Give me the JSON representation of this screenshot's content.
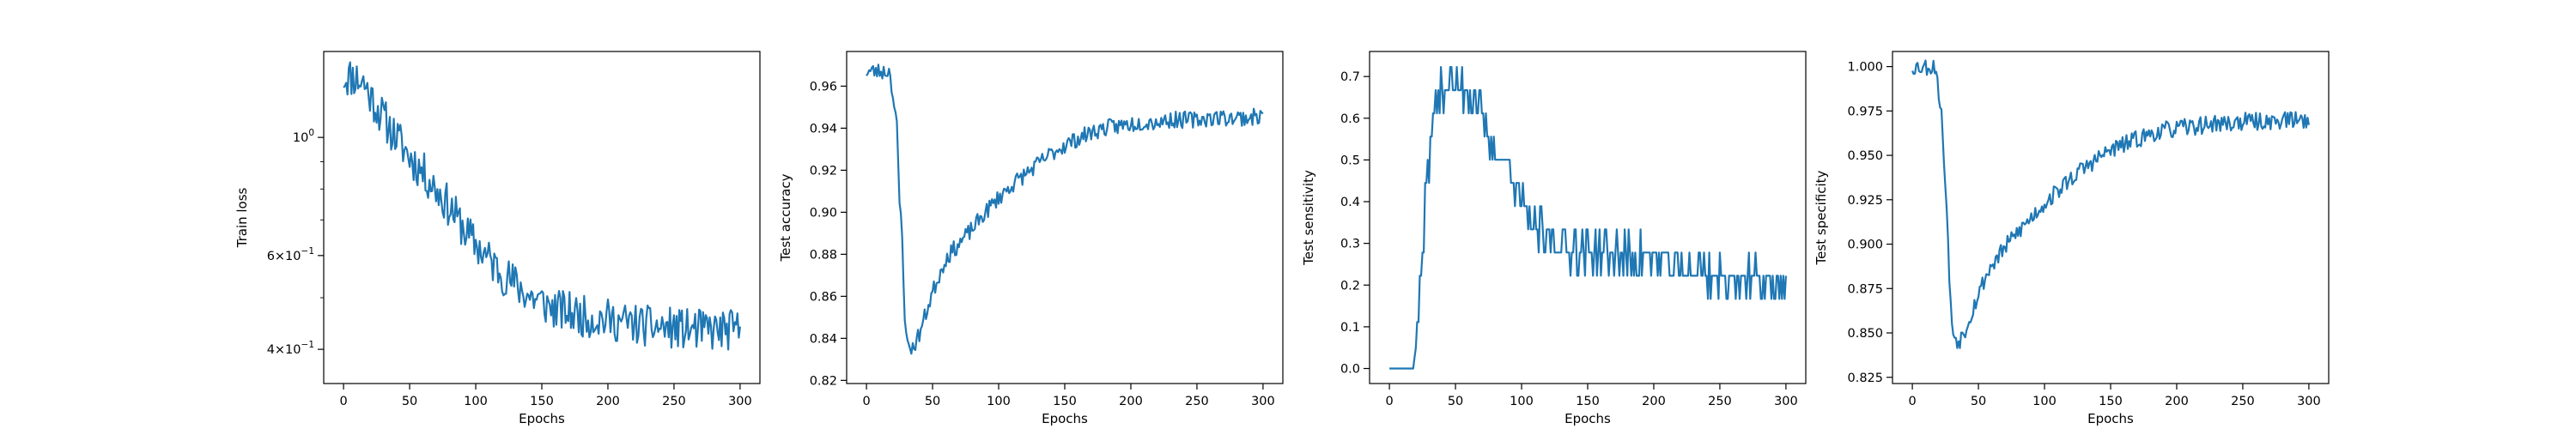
{
  "chart_data": [
    {
      "type": "line",
      "xlabel": "Epochs",
      "ylabel": "Train loss",
      "xlim": [
        -15,
        315
      ],
      "ylim": [
        0.345,
        1.45
      ],
      "yscale": "log",
      "xticks": [
        0,
        50,
        100,
        150,
        200,
        250,
        300
      ],
      "yticks": [
        {
          "value": 1.0,
          "label": "10^0"
        },
        {
          "value": 0.6,
          "label": "6×10^-1"
        },
        {
          "value": 0.4,
          "label": "4×10^-1"
        }
      ],
      "y_minor_ticks": [
        0.5,
        0.7,
        0.8,
        0.9
      ],
      "series": [
        {
          "color": "#1f77b4",
          "noise": 0.045,
          "seed": 11,
          "x": [
            0,
            8,
            15,
            20,
            25,
            30,
            35,
            40,
            45,
            50,
            55,
            60,
            65,
            70,
            75,
            80,
            85,
            90,
            95,
            100,
            105,
            110,
            120,
            130,
            140,
            150,
            160,
            170,
            180,
            190,
            200,
            210,
            220,
            230,
            240,
            250,
            260,
            270,
            280,
            290,
            300
          ],
          "y": [
            1.3,
            1.3,
            1.27,
            1.2,
            1.14,
            1.09,
            1.04,
            1.0,
            0.96,
            0.92,
            0.89,
            0.86,
            0.83,
            0.8,
            0.77,
            0.74,
            0.71,
            0.68,
            0.65,
            0.63,
            0.61,
            0.59,
            0.555,
            0.53,
            0.505,
            0.49,
            0.475,
            0.47,
            0.462,
            0.458,
            0.455,
            0.45,
            0.446,
            0.442,
            0.44,
            0.438,
            0.436,
            0.435,
            0.434,
            0.434,
            0.435
          ]
        }
      ]
    },
    {
      "type": "line",
      "xlabel": "Epochs",
      "ylabel": "Test accuracy",
      "xlim": [
        -15,
        315
      ],
      "ylim": [
        0.8185,
        0.9765
      ],
      "xticks": [
        0,
        50,
        100,
        150,
        200,
        250,
        300
      ],
      "yticks": [
        {
          "value": 0.82,
          "label": "0.82"
        },
        {
          "value": 0.84,
          "label": "0.84"
        },
        {
          "value": 0.86,
          "label": "0.86"
        },
        {
          "value": 0.88,
          "label": "0.88"
        },
        {
          "value": 0.9,
          "label": "0.90"
        },
        {
          "value": 0.92,
          "label": "0.92"
        },
        {
          "value": 0.94,
          "label": "0.94"
        },
        {
          "value": 0.96,
          "label": "0.96"
        }
      ],
      "series": [
        {
          "color": "#1f77b4",
          "noise": 0.004,
          "seed": 23,
          "x": [
            0,
            10,
            18,
            20,
            23,
            25,
            27,
            28,
            29,
            30,
            32,
            35,
            40,
            45,
            50,
            55,
            60,
            70,
            80,
            90,
            100,
            110,
            120,
            130,
            140,
            150,
            160,
            170,
            180,
            190,
            200,
            210,
            220,
            230,
            240,
            250,
            260,
            270,
            280,
            290,
            300
          ],
          "y": [
            0.967,
            0.967,
            0.967,
            0.955,
            0.94,
            0.905,
            0.89,
            0.87,
            0.85,
            0.84,
            0.837,
            0.835,
            0.842,
            0.852,
            0.862,
            0.87,
            0.878,
            0.885,
            0.892,
            0.9,
            0.907,
            0.913,
            0.918,
            0.923,
            0.928,
            0.932,
            0.935,
            0.938,
            0.94,
            0.941,
            0.942,
            0.943,
            0.943,
            0.944,
            0.944,
            0.944,
            0.945,
            0.945,
            0.945,
            0.945,
            0.946
          ]
        }
      ]
    },
    {
      "type": "line",
      "xlabel": "Epochs",
      "ylabel": "Test sensitivity",
      "xlim": [
        -15,
        315
      ],
      "ylim": [
        -0.036,
        0.76
      ],
      "xticks": [
        0,
        50,
        100,
        150,
        200,
        250,
        300
      ],
      "yticks": [
        {
          "value": 0.0,
          "label": "0.0"
        },
        {
          "value": 0.1,
          "label": "0.1"
        },
        {
          "value": 0.2,
          "label": "0.2"
        },
        {
          "value": 0.3,
          "label": "0.3"
        },
        {
          "value": 0.4,
          "label": "0.4"
        },
        {
          "value": 0.5,
          "label": "0.5"
        },
        {
          "value": 0.6,
          "label": "0.6"
        },
        {
          "value": 0.7,
          "label": "0.7"
        }
      ],
      "series": [
        {
          "color": "#1f77b4",
          "noise": 0.045,
          "seed": 37,
          "quantize": 0.0556,
          "x": [
            0,
            10,
            18,
            20,
            22,
            25,
            28,
            30,
            33,
            36,
            40,
            45,
            50,
            55,
            60,
            65,
            70,
            75,
            80,
            85,
            90,
            95,
            100,
            105,
            110,
            120,
            130,
            140,
            150,
            160,
            170,
            180,
            190,
            200,
            210,
            220,
            230,
            240,
            250,
            260,
            270,
            280,
            290,
            300
          ],
          "y": [
            0.0,
            0.0,
            0.0,
            0.05,
            0.12,
            0.28,
            0.44,
            0.5,
            0.61,
            0.64,
            0.67,
            0.69,
            0.67,
            0.67,
            0.67,
            0.65,
            0.6,
            0.55,
            0.52,
            0.5,
            0.48,
            0.45,
            0.4,
            0.36,
            0.33,
            0.31,
            0.3,
            0.29,
            0.29,
            0.28,
            0.28,
            0.27,
            0.27,
            0.26,
            0.25,
            0.24,
            0.23,
            0.23,
            0.22,
            0.22,
            0.21,
            0.21,
            0.21,
            0.21
          ]
        }
      ]
    },
    {
      "type": "line",
      "xlabel": "Epochs",
      "ylabel": "Test specificity",
      "xlim": [
        -15,
        315
      ],
      "ylim": [
        0.8215,
        1.0085
      ],
      "xticks": [
        0,
        50,
        100,
        150,
        200,
        250,
        300
      ],
      "yticks": [
        {
          "value": 0.825,
          "label": "0.825"
        },
        {
          "value": 0.85,
          "label": "0.850"
        },
        {
          "value": 0.875,
          "label": "0.875"
        },
        {
          "value": 0.9,
          "label": "0.900"
        },
        {
          "value": 0.925,
          "label": "0.925"
        },
        {
          "value": 0.95,
          "label": "0.950"
        },
        {
          "value": 0.975,
          "label": "0.975"
        },
        {
          "value": 1.0,
          "label": "1.000"
        }
      ],
      "series": [
        {
          "color": "#1f77b4",
          "noise": 0.005,
          "seed": 53,
          "x": [
            0,
            10,
            18,
            20,
            23,
            25,
            27,
            28,
            29,
            30,
            32,
            35,
            40,
            45,
            50,
            55,
            60,
            70,
            80,
            90,
            100,
            110,
            120,
            130,
            140,
            150,
            160,
            170,
            180,
            190,
            200,
            210,
            220,
            230,
            240,
            250,
            260,
            270,
            280,
            290,
            300
          ],
          "y": [
            1.0,
            1.0,
            1.0,
            0.985,
            0.965,
            0.93,
            0.905,
            0.88,
            0.865,
            0.855,
            0.848,
            0.845,
            0.852,
            0.862,
            0.872,
            0.881,
            0.888,
            0.898,
            0.907,
            0.915,
            0.923,
            0.93,
            0.937,
            0.943,
            0.948,
            0.953,
            0.956,
            0.959,
            0.962,
            0.964,
            0.965,
            0.966,
            0.967,
            0.968,
            0.968,
            0.969,
            0.969,
            0.969,
            0.97,
            0.97,
            0.97
          ]
        }
      ]
    }
  ]
}
